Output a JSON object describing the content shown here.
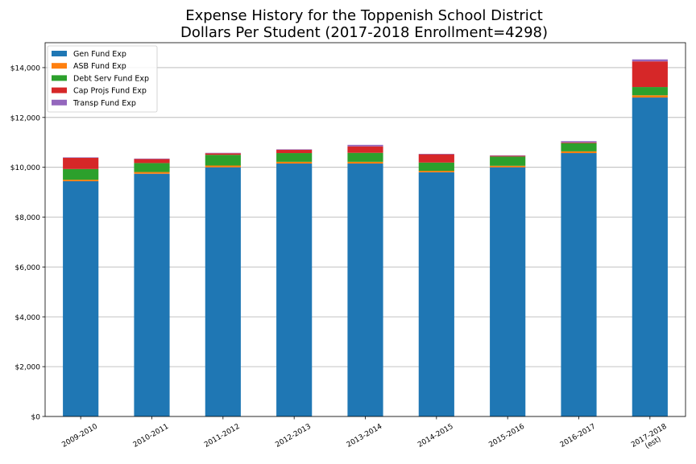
{
  "chart_data": {
    "type": "bar",
    "stacked": true,
    "title": "Expense History for the Toppenish School District",
    "subtitle": "Dollars Per Student (2017-2018 Enrollment=4298)",
    "xlabel": "",
    "ylabel": "",
    "ylim": [
      0,
      15000
    ],
    "yticks": [
      0,
      2000,
      4000,
      6000,
      8000,
      10000,
      12000,
      14000
    ],
    "ytick_labels": [
      "$0",
      "$2,000",
      "$4,000",
      "$6,000",
      "$8,000",
      "$10,000",
      "$12,000",
      "$14,000"
    ],
    "grid": "y",
    "legend_position": "top-left",
    "categories": [
      "2009-2010",
      "2010-2011",
      "2011-2012",
      "2012-2013",
      "2013-2014",
      "2014-2015",
      "2015-2016",
      "2016-2017",
      "2017-2018\n(est)"
    ],
    "series": [
      {
        "name": "Gen Fund Exp",
        "color": "#1f77b4",
        "values": [
          9440,
          9740,
          10000,
          10150,
          10150,
          9800,
          10000,
          10570,
          12800
        ]
      },
      {
        "name": "ASB Fund Exp",
        "color": "#ff7f0e",
        "values": [
          60,
          70,
          70,
          70,
          70,
          60,
          60,
          70,
          90
        ]
      },
      {
        "name": "Debt Serv Fund Exp",
        "color": "#2ca02c",
        "values": [
          430,
          360,
          430,
          350,
          360,
          330,
          370,
          330,
          330
        ]
      },
      {
        "name": "Cap Projs Fund Exp",
        "color": "#d62728",
        "values": [
          450,
          160,
          60,
          130,
          260,
          330,
          30,
          30,
          1030
        ]
      },
      {
        "name": "Transp Fund Exp",
        "color": "#9467bd",
        "values": [
          20,
          20,
          20,
          20,
          60,
          20,
          20,
          50,
          80
        ]
      }
    ]
  }
}
